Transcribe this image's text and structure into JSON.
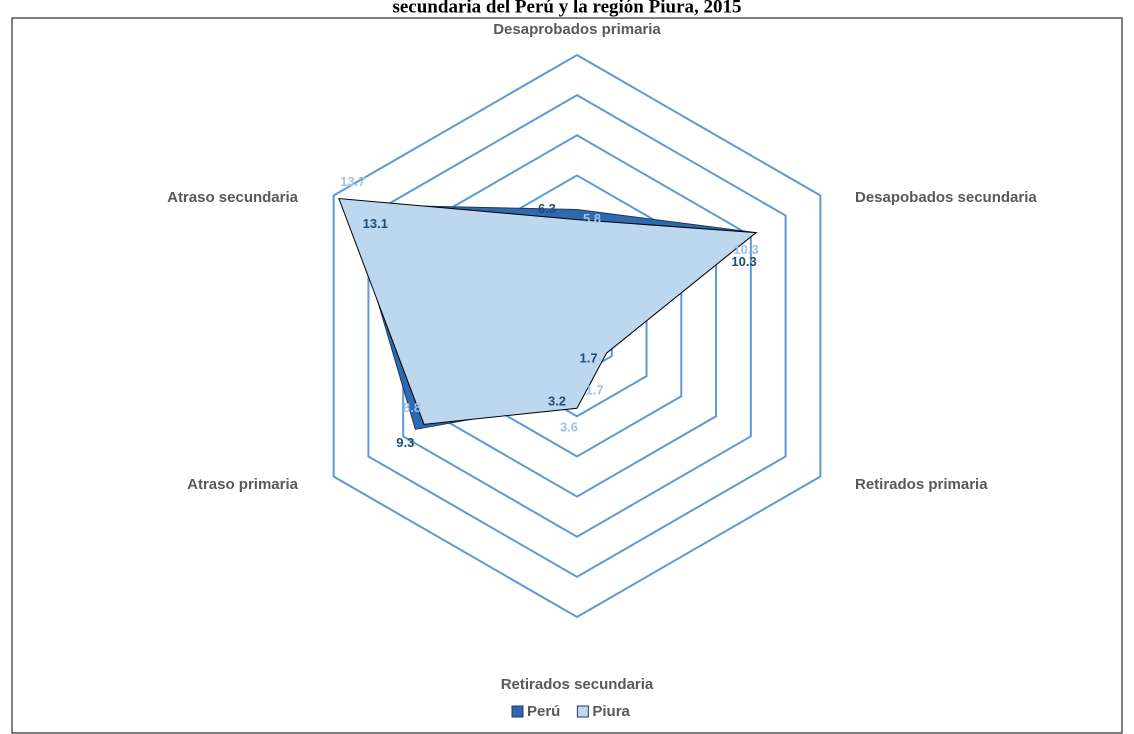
{
  "chart_data": {
    "type": "radar",
    "title": "secundaria del Perú y la región Piura, 2015",
    "categories": [
      "Desaprobados primaria",
      "Desapobados secundaria",
      "Retirados primaria",
      "Retirados secundaria",
      "Atraso primaria",
      "Atraso secundaria"
    ],
    "series": [
      {
        "name": "Perú",
        "color": "#2e6aad",
        "values": [
          6.3,
          10.3,
          1.7,
          3.2,
          9.3,
          13.1
        ]
      },
      {
        "name": "Piura",
        "color": "#bdd7ee",
        "values": [
          5.8,
          10.3,
          1.7,
          3.6,
          8.8,
          13.7
        ]
      }
    ],
    "ylim": [
      0,
      14
    ],
    "yticks": [
      0,
      2,
      4,
      6,
      8,
      10,
      12,
      14
    ],
    "grid": true,
    "legend": "bottom"
  }
}
